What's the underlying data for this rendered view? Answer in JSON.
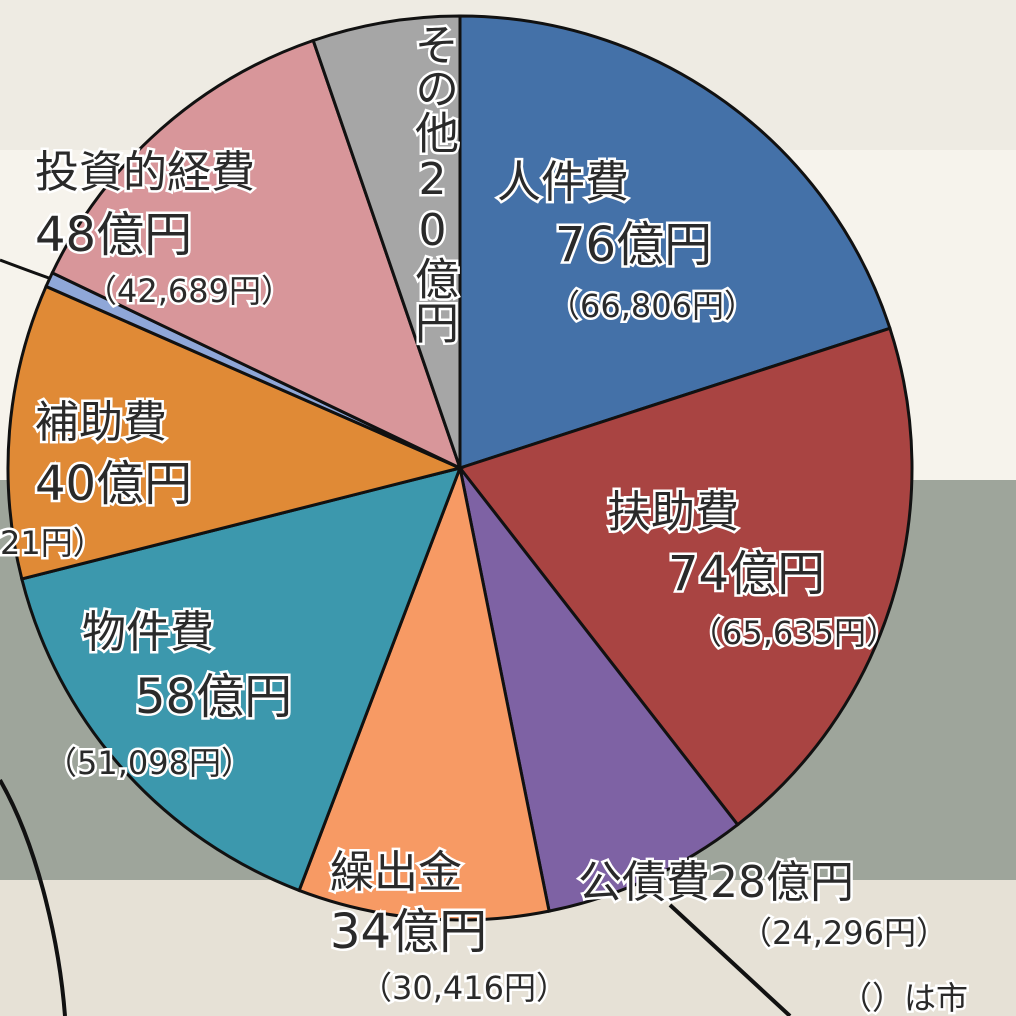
{
  "chart_data": {
    "type": "pie",
    "categories": [
      "人件費",
      "扶助費",
      "公債費",
      "繰出金",
      "物件費",
      "補助費",
      null,
      "投資的経費",
      "その他"
    ],
    "values": [
      76,
      74,
      28,
      34,
      58,
      40,
      2,
      48,
      20
    ],
    "value_labels": [
      "76億円",
      "74億円",
      "28億円",
      "34億円",
      "58億円",
      "40億円",
      null,
      "48億円",
      "20億円"
    ],
    "per_capita_labels": [
      "（66,806円）",
      "（65,635円）",
      "（24,296円）",
      "（30,416円）",
      "（51,098円）",
      "21円）",
      null,
      "（42,689円）",
      null
    ],
    "colors": [
      "#4471a8",
      "#a94442",
      "#7e62a4",
      "#f79a64",
      "#3c98ad",
      "#e08a36",
      "#8fa7d8",
      "#d8969a",
      "#a6a6a6"
    ],
    "note": "（）は市"
  }
}
